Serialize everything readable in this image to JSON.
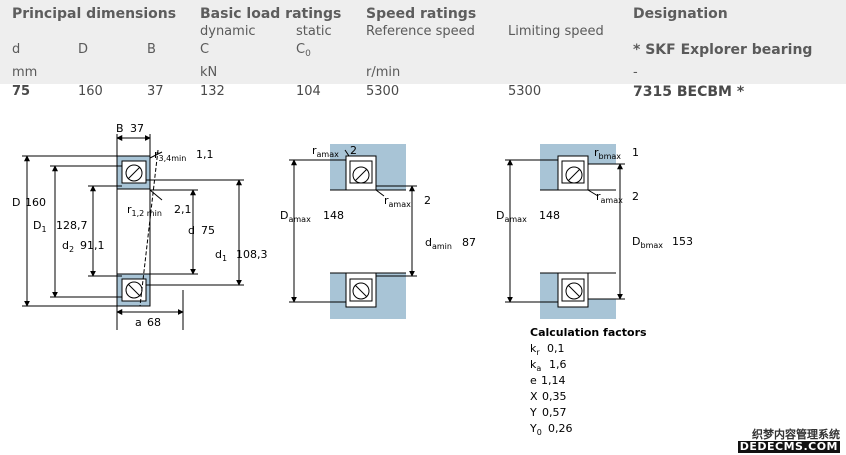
{
  "headers": {
    "principal": "Principal dimensions",
    "basic_load": "Basic load ratings",
    "speed": "Speed ratings",
    "designation": "Designation"
  },
  "subheaders": {
    "dynamic": "dynamic",
    "static": "static",
    "reference_speed": "Reference speed",
    "limiting_speed": "Limiting speed"
  },
  "symbols": {
    "d": "d",
    "D": "D",
    "B": "B",
    "C": "C",
    "C0_base": "C",
    "C0_sub": "0",
    "skf_explorer": "* SKF Explorer bearing"
  },
  "units": {
    "mm": "mm",
    "kN": "kN",
    "rmin": "r/min",
    "dash": "-"
  },
  "values": {
    "d": "75",
    "D": "160",
    "B": "37",
    "C": "132",
    "C0": "104",
    "ref_speed": "5300",
    "lim_speed": "5300",
    "designation": "7315 BECBM *"
  },
  "drawing1": {
    "B": "B",
    "B_val": "37",
    "r34_base": "r",
    "r34_sub": "3,4min",
    "r34_val": "1,1",
    "D_label": "D",
    "D_val": "160",
    "D1_base": "D",
    "D1_sub": "1",
    "D1_val": "128,7",
    "d2_base": "d",
    "d2_sub": "2",
    "d2_val": "91,1",
    "r12_base": "r",
    "r12_sub": "1,2 min",
    "r12_val": "2,1",
    "d_label": "d",
    "d_val": "75",
    "d1_base": "d",
    "d1_sub": "1",
    "d1_val": "108,3",
    "a_label": "a",
    "a_val": "68"
  },
  "drawing2": {
    "ra_base": "r",
    "ra_sub": "amax",
    "ra_val": "2",
    "ra2_base": "r",
    "ra2_sub": "amax",
    "ra2_val": "2",
    "Da_base": "D",
    "Da_sub": "amax",
    "Da_val": "148",
    "da_base": "d",
    "da_sub": "amin",
    "da_val": "87"
  },
  "drawing3": {
    "rb_base": "r",
    "rb_sub": "bmax",
    "rb_val": "1",
    "ra_base": "r",
    "ra_sub": "amax",
    "ra_val": "2",
    "Da_base": "D",
    "Da_sub": "amax",
    "Da_val": "148",
    "Db_base": "D",
    "Db_sub": "bmax",
    "Db_val": "153"
  },
  "calc": {
    "title": "Calculation factors",
    "kr_base": "k",
    "kr_sub": "r",
    "kr_val": "0,1",
    "ka_base": "k",
    "ka_sub": "a",
    "ka_val": "1,6",
    "e_label": "e",
    "e_val": "1,14",
    "X_label": "X",
    "X_val": "0,35",
    "Y_label": "Y",
    "Y_val": "0,57",
    "Y0_base": "Y",
    "Y0_sub": "0",
    "Y0_val": "0,26"
  },
  "watermark": {
    "line1": "织梦内容管理系统",
    "line2": "DEDECMS.COM"
  },
  "colors": {
    "band": "#eeeeee",
    "bearing_fill": "#a8c4d6",
    "line": "#000000",
    "text": "#5a5a5a"
  }
}
